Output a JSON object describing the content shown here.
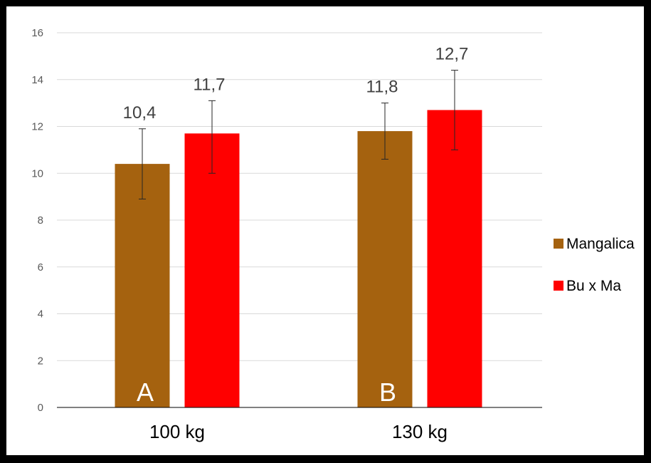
{
  "chart_data": {
    "type": "bar",
    "title": "",
    "xlabel": "",
    "ylabel": "",
    "categories": [
      "100 kg",
      "130 kg"
    ],
    "ylim": [
      0,
      16
    ],
    "yticks": [
      0,
      2,
      4,
      6,
      8,
      10,
      12,
      14,
      16
    ],
    "grid": true,
    "legend_position": "right",
    "series": [
      {
        "name": "Mangalica",
        "color": "#A5620F",
        "values": [
          10.4,
          11.8
        ],
        "labels": [
          "10,4",
          "11,8"
        ],
        "error_low": [
          8.9,
          10.6
        ],
        "error_high": [
          11.9,
          13.0
        ],
        "bar_annotations": [
          "A",
          "B"
        ]
      },
      {
        "name": "Bu x Ma",
        "color": "#FF0000",
        "values": [
          11.7,
          12.7
        ],
        "labels": [
          "11,7",
          "12,7"
        ],
        "error_low": [
          10.0,
          11.0
        ],
        "error_high": [
          13.1,
          14.4
        ],
        "bar_annotations": [
          "",
          ""
        ]
      }
    ]
  }
}
